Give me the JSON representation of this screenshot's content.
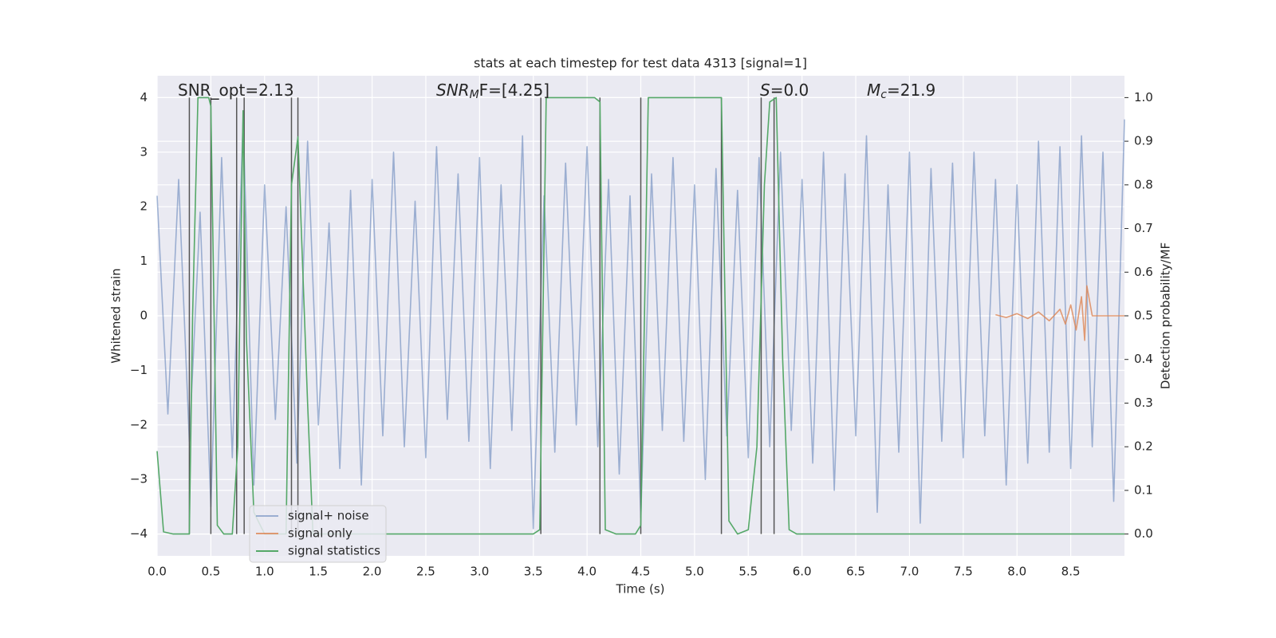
{
  "chart_data": {
    "type": "line",
    "title": "stats at each timestep for test data 4313 [signal=1]",
    "x_label": "Time (s)",
    "y_label": "Whitened strain",
    "y2_label": "Detection probability/MF",
    "background": "#eaeaf2",
    "grid": true,
    "legend_loc": "lower left",
    "xlim": [
      0,
      9.0
    ],
    "ylim": [
      -4.4,
      4.4
    ],
    "y2lim": [
      -0.05,
      1.05
    ],
    "xticks": [
      {
        "value": 0,
        "label": "0.0"
      },
      0.5,
      {
        "value": 1,
        "label": "1.0"
      },
      1.5,
      {
        "value": 2,
        "label": "2.0"
      },
      2.5,
      {
        "value": 3,
        "label": "3.0"
      },
      3.5,
      {
        "value": 4,
        "label": "4.0"
      },
      4.5,
      {
        "value": 5,
        "label": "5.0"
      },
      5.5,
      {
        "value": 6,
        "label": "6.0"
      },
      6.5,
      {
        "value": 7,
        "label": "7.0"
      },
      7.5,
      {
        "value": 8,
        "label": "8.0"
      },
      8.5
    ],
    "yticks": [
      {
        "value": -4,
        "label": "−4"
      },
      {
        "value": -3,
        "label": "−3"
      },
      {
        "value": -2,
        "label": "−2"
      },
      {
        "value": -1,
        "label": "−1"
      },
      0,
      1,
      2,
      3,
      4
    ],
    "y2ticks": [
      {
        "value": 0,
        "label": "0.0"
      },
      0.1,
      0.2,
      0.3,
      0.4,
      0.5,
      0.6,
      0.7,
      0.8,
      0.9,
      {
        "value": 1,
        "label": "1.0"
      }
    ],
    "annotations": [
      {
        "text": "SNR_opt=2.13"
      },
      {
        "text": "SNR",
        "sub": "M",
        "rest": "F=[4.25]",
        "italic": true
      },
      {
        "text": "S",
        "rest": "=0.0",
        "italic": true
      },
      {
        "text": "M",
        "sub": "c",
        "rest": "=21.9",
        "italic": true
      }
    ],
    "vlines": [
      0.3,
      0.5,
      0.74,
      0.81,
      1.25,
      1.31,
      3.57,
      4.12,
      4.5,
      5.25,
      5.62,
      5.74
    ],
    "vline_range": [
      -4,
      4
    ],
    "vline_color": "#555555",
    "series": [
      {
        "name": "signal+ noise",
        "color": "#4c72b0",
        "opacity": 0.5,
        "x": [
          0,
          0.1,
          0.2,
          0.3,
          0.4,
          0.5,
          0.6,
          0.7,
          0.8,
          0.9,
          1.0,
          1.1,
          1.2,
          1.3,
          1.4,
          1.5,
          1.6,
          1.7,
          1.8,
          1.9,
          2.0,
          2.1,
          2.2,
          2.3,
          2.4,
          2.5,
          2.6,
          2.7,
          2.8,
          2.9,
          3.0,
          3.1,
          3.2,
          3.3,
          3.4,
          3.5,
          3.6,
          3.7,
          3.8,
          3.9,
          4.0,
          4.1,
          4.2,
          4.3,
          4.4,
          4.5,
          4.6,
          4.7,
          4.8,
          4.9,
          5.0,
          5.1,
          5.2,
          5.3,
          5.4,
          5.5,
          5.6,
          5.7,
          5.8,
          5.9,
          6.0,
          6.1,
          6.2,
          6.3,
          6.4,
          6.5,
          6.6,
          6.7,
          6.8,
          6.9,
          7.0,
          7.1,
          7.2,
          7.3,
          7.4,
          7.5,
          7.6,
          7.7,
          7.8,
          7.9,
          8.0,
          8.1,
          8.2,
          8.3,
          8.4,
          8.5,
          8.6,
          8.7,
          8.8,
          8.9,
          9.0
        ],
        "values": [
          2.2,
          -1.8,
          2.5,
          -2.3,
          1.9,
          -3.5,
          2.9,
          -2.6,
          3.6,
          -3.1,
          2.4,
          -1.9,
          2.0,
          -2.7,
          3.2,
          -2.0,
          1.7,
          -2.8,
          2.3,
          -3.1,
          2.5,
          -2.2,
          3.0,
          -2.4,
          2.1,
          -2.6,
          3.1,
          -1.9,
          2.6,
          -2.3,
          2.9,
          -2.8,
          2.4,
          -2.1,
          3.3,
          -3.9,
          2.2,
          -2.5,
          2.8,
          -2.0,
          3.1,
          -2.4,
          2.5,
          -2.9,
          2.2,
          -3.7,
          2.6,
          -2.1,
          2.9,
          -2.3,
          2.4,
          -3.0,
          2.7,
          -2.2,
          2.3,
          -2.6,
          2.9,
          -2.4,
          3.0,
          -2.1,
          2.5,
          -2.7,
          3.0,
          -3.2,
          2.6,
          -2.2,
          3.3,
          -3.6,
          2.4,
          -2.5,
          3.0,
          -3.8,
          2.7,
          -2.3,
          2.8,
          -2.6,
          3.0,
          -2.2,
          2.5,
          -3.1,
          2.4,
          -2.7,
          3.2,
          -2.5,
          3.1,
          -2.8,
          3.3,
          -2.4,
          3.0,
          -3.4,
          3.6
        ]
      },
      {
        "name": "signal only",
        "color": "#dd8452",
        "opacity": 0.8,
        "x": [
          7.8,
          7.9,
          8.0,
          8.1,
          8.2,
          8.3,
          8.4,
          8.45,
          8.5,
          8.55,
          8.6,
          8.63,
          8.65,
          8.7,
          9.0
        ],
        "values": [
          0.02,
          -0.03,
          0.04,
          -0.05,
          0.07,
          -0.09,
          0.12,
          -0.15,
          0.2,
          -0.26,
          0.35,
          -0.45,
          0.55,
          0,
          0
        ]
      },
      {
        "name": "signal statistics",
        "color": "#55a868",
        "opacity": 1,
        "axis": "y2",
        "x": [
          0,
          0.06,
          0.15,
          0.3,
          0.33,
          0.38,
          0.48,
          0.5,
          0.56,
          0.62,
          0.7,
          0.75,
          0.8,
          0.83,
          0.9,
          1.0,
          1.2,
          1.25,
          1.31,
          1.4,
          1.45,
          2.0,
          2.2,
          3.5,
          3.56,
          3.62,
          4.07,
          4.12,
          4.17,
          4.27,
          4.45,
          4.5,
          4.57,
          5.25,
          5.32,
          5.4,
          5.5,
          5.58,
          5.65,
          5.7,
          5.76,
          5.82,
          5.88,
          5.95,
          9.0
        ],
        "values": [
          0.19,
          0.005,
          0.0,
          0.0,
          0.5,
          1.0,
          1.0,
          0.98,
          0.02,
          0.0,
          0.0,
          0.2,
          0.97,
          0.45,
          0.05,
          0.0,
          0.0,
          0.8,
          0.91,
          0.3,
          0.0,
          0.0,
          0.0,
          0.0,
          0.01,
          1.0,
          1.0,
          0.99,
          0.01,
          0.0,
          0.0,
          0.02,
          1.0,
          1.0,
          0.03,
          0.0,
          0.01,
          0.2,
          0.8,
          0.99,
          1.0,
          0.4,
          0.01,
          0.0,
          0.0
        ]
      }
    ]
  }
}
